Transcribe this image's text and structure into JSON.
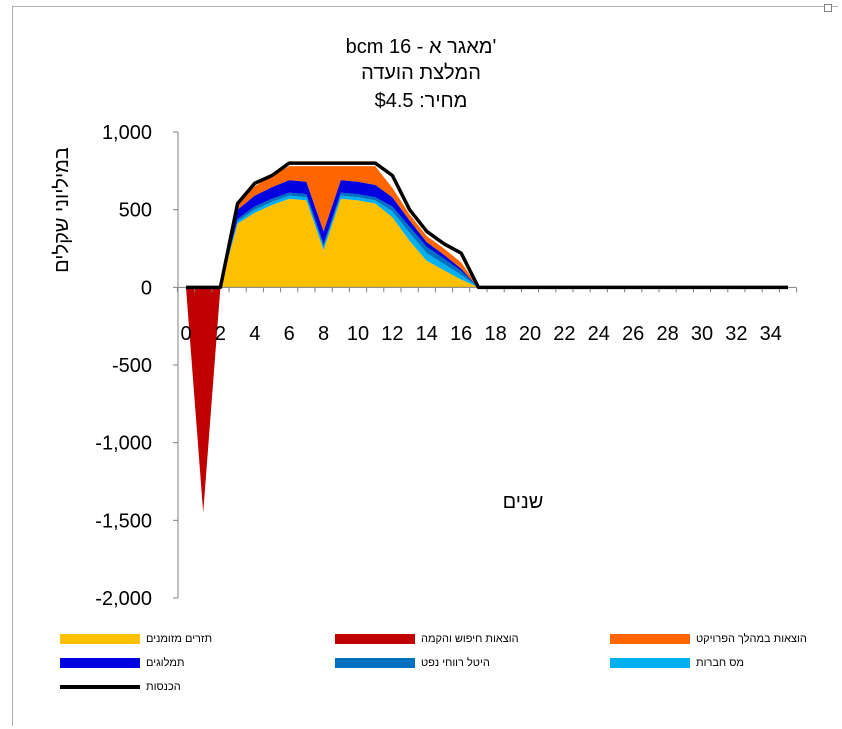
{
  "chart_data": {
    "type": "area",
    "title_lines": [
      "bcm 16 - מאגר א'",
      "המלצת הועדה",
      "מחיר: $4.5"
    ],
    "ylabel": "במיליוני שקלים",
    "xlabel": "שנים",
    "ylim": [
      -2000,
      1000
    ],
    "y_ticks": [
      1000,
      500,
      0,
      -500,
      -1000,
      -1500,
      -2000
    ],
    "y_tick_labels": [
      "1,000",
      "500",
      "0",
      "-500",
      "-1,000",
      "-1,500",
      "-2,000"
    ],
    "x_tick_labels": [
      "0",
      "2",
      "4",
      "6",
      "8",
      "10",
      "12",
      "14",
      "16",
      "18",
      "20",
      "22",
      "24",
      "26",
      "28",
      "30",
      "32",
      "34"
    ],
    "x": [
      0,
      1,
      2,
      3,
      4,
      5,
      6,
      7,
      8,
      9,
      10,
      11,
      12,
      13,
      14,
      15,
      16,
      17,
      18,
      19,
      20,
      21,
      22,
      23,
      24,
      25,
      26,
      27,
      28,
      29,
      30,
      31,
      32,
      33,
      34,
      35
    ],
    "series": [
      {
        "name": "תזרים מזומנים",
        "color": "#FFC000",
        "values": [
          0,
          0,
          0,
          410,
          480,
          530,
          570,
          560,
          240,
          570,
          560,
          540,
          450,
          300,
          170,
          110,
          50,
          0,
          0,
          0,
          0,
          0,
          0,
          0,
          0,
          0,
          0,
          0,
          0,
          0,
          0,
          0,
          0,
          0,
          0,
          0
        ]
      },
      {
        "name": "מס חברות",
        "color": "#00B0F0",
        "values": [
          0,
          0,
          0,
          15,
          20,
          20,
          20,
          20,
          20,
          20,
          20,
          20,
          40,
          50,
          50,
          40,
          30,
          0,
          0,
          0,
          0,
          0,
          0,
          0,
          0,
          0,
          0,
          0,
          0,
          0,
          0,
          0,
          0,
          0,
          0,
          0
        ]
      },
      {
        "name": "היטל רווחי נפט",
        "color": "#0070C0",
        "values": [
          0,
          0,
          0,
          15,
          20,
          20,
          20,
          20,
          20,
          20,
          20,
          20,
          30,
          40,
          40,
          35,
          25,
          0,
          0,
          0,
          0,
          0,
          0,
          0,
          0,
          0,
          0,
          0,
          0,
          0,
          0,
          0,
          0,
          0,
          0,
          0
        ]
      },
      {
        "name": "תמלוגים",
        "color": "#0000E0",
        "values": [
          0,
          0,
          0,
          60,
          70,
          75,
          80,
          80,
          80,
          80,
          80,
          80,
          60,
          40,
          30,
          25,
          15,
          0,
          0,
          0,
          0,
          0,
          0,
          0,
          0,
          0,
          0,
          0,
          0,
          0,
          0,
          0,
          0,
          0,
          0,
          0
        ]
      },
      {
        "name": "הוצאות במהלך הפרויקט",
        "color": "#FF6600",
        "values": [
          0,
          0,
          0,
          40,
          60,
          75,
          90,
          100,
          420,
          90,
          100,
          120,
          60,
          40,
          40,
          40,
          40,
          0,
          0,
          0,
          0,
          0,
          0,
          0,
          0,
          0,
          0,
          0,
          0,
          0,
          0,
          0,
          0,
          0,
          0,
          0
        ]
      },
      {
        "name": "הוצאות חיפוש והקמה",
        "color": "#C00000",
        "values": [
          0,
          -1450,
          0,
          0,
          0,
          0,
          0,
          0,
          0,
          0,
          0,
          0,
          0,
          0,
          0,
          0,
          0,
          0,
          0,
          0,
          0,
          0,
          0,
          0,
          0,
          0,
          0,
          0,
          0,
          0,
          0,
          0,
          0,
          0,
          0,
          0
        ]
      }
    ],
    "line_series": {
      "name": "הכנסות",
      "color": "#000000",
      "values": [
        0,
        0,
        0,
        540,
        670,
        720,
        800,
        800,
        800,
        800,
        800,
        800,
        720,
        500,
        360,
        280,
        220,
        0,
        0,
        0,
        0,
        0,
        0,
        0,
        0,
        0,
        0,
        0,
        0,
        0,
        0,
        0,
        0,
        0,
        0,
        0
      ]
    },
    "legend": [
      {
        "label": "תזרים מזומנים",
        "color": "#FFC000",
        "kind": "area"
      },
      {
        "label": "הוצאות חיפוש והקמה",
        "color": "#C00000",
        "kind": "area"
      },
      {
        "label": "הוצאות במהלך הפרויקט",
        "color": "#FF6600",
        "kind": "area"
      },
      {
        "label": "תמלוגים",
        "color": "#0000E0",
        "kind": "area"
      },
      {
        "label": "היטל רווחי נפט",
        "color": "#0070C0",
        "kind": "area"
      },
      {
        "label": "מס חברות",
        "color": "#00B0F0",
        "kind": "area"
      },
      {
        "label": "הכנסות",
        "color": "#000000",
        "kind": "line"
      }
    ],
    "legend_position": "bottom",
    "grid": false
  }
}
